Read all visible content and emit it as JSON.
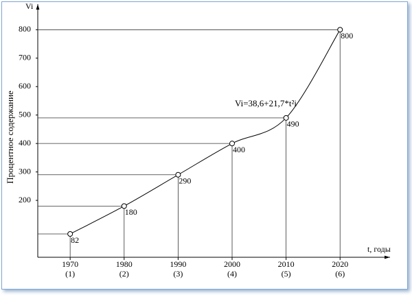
{
  "chart_data": {
    "type": "line",
    "y_axis_label": "Vi",
    "y_axis_title": "Процентное содержание",
    "x_axis_label": "t, годы",
    "annotation": "Vi=38,6+21,7*t²i",
    "x": [
      1970,
      1980,
      1990,
      2000,
      2010,
      2020
    ],
    "values": [
      82,
      180,
      290,
      400,
      490,
      800
    ],
    "xlim": [
      1964,
      2029
    ],
    "ylim": [
      0,
      890
    ],
    "xticks": [
      1970,
      1980,
      1990,
      2000,
      2010,
      2020
    ],
    "xtick_sublabels": [
      "(1)",
      "(2)",
      "(3)",
      "(4)",
      "(5)",
      "(6)"
    ],
    "yticks": [
      200,
      300,
      400,
      500,
      600,
      700,
      800
    ],
    "color": "#000000",
    "guide_lines": true
  }
}
